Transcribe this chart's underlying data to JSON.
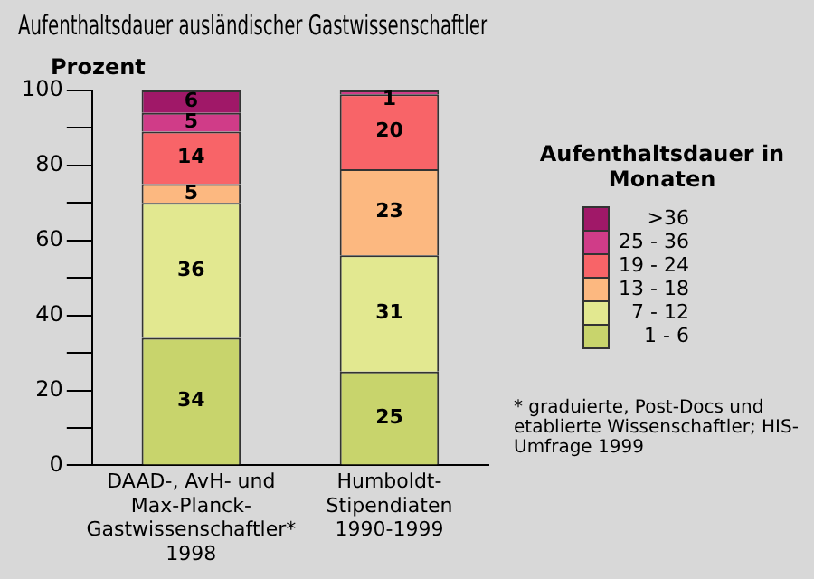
{
  "chart_data": {
    "type": "bar",
    "stacked": true,
    "title": "Aufenthaltsdauer ausländischer Gastwissenschaftler",
    "ylabel": "Prozent",
    "legend_title": "Aufenthaltsdauer in Monaten",
    "legend": "right",
    "categories": [
      "DAAD-, AvH- und Max-Planck-Gastwissenschaftler* 1998",
      "Humboldt-Stipendiaten 1990-1999"
    ],
    "series": [
      {
        "name": "1 - 6",
        "color": "#c8d46c",
        "values": [
          34,
          25
        ]
      },
      {
        "name": "7 - 12",
        "color": "#e2e890",
        "values": [
          36,
          31
        ]
      },
      {
        "name": "13 - 18",
        "color": "#fcb880",
        "values": [
          5,
          23
        ]
      },
      {
        "name": "19 - 24",
        "color": "#f86468",
        "values": [
          14,
          20
        ]
      },
      {
        "name": "25 - 36",
        "color": "#d03c88",
        "values": [
          5,
          1
        ]
      },
      {
        "name": ">36",
        "color": "#a01868",
        "values": [
          6,
          null
        ]
      }
    ],
    "ylim": [
      0,
      100
    ],
    "yticks": [
      0,
      {
        "value": 10,
        "label": null
      },
      20,
      {
        "value": 30,
        "label": null
      },
      40,
      {
        "value": 50,
        "label": null
      },
      60,
      {
        "value": 70,
        "label": null
      },
      80,
      {
        "value": 90,
        "label": null
      },
      100
    ],
    "grid": false,
    "data_labels": true,
    "annotations": [
      "* graduierte, Post-Docs und etablierte Wissenschaftler; HIS-Umfrage 1999"
    ]
  }
}
